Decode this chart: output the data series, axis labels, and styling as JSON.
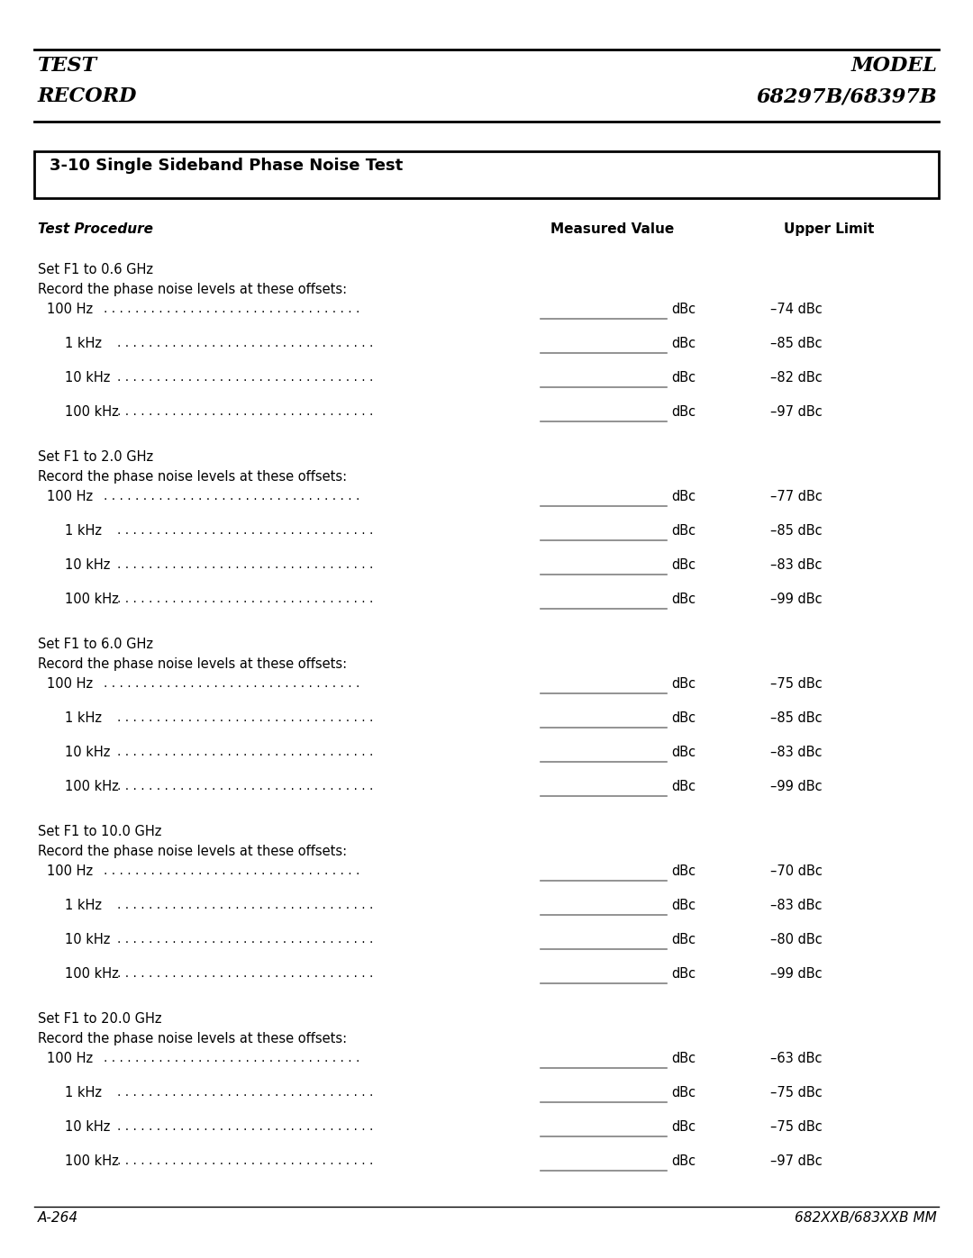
{
  "header_left": [
    "TEST",
    "RECORD"
  ],
  "header_right": [
    "MODEL",
    "68297B/68397B"
  ],
  "section_title": "3-10 Single Sideband Phase Noise Test",
  "col_headers": [
    "Test Procedure",
    "Measured Value",
    "Upper Limit"
  ],
  "groups": [
    {
      "set_line": "Set F1 to 0.6 GHz",
      "record_line": "Record the phase noise levels at these offsets:",
      "rows": [
        {
          "label": "100 Hz",
          "indent": 0,
          "upper_limit": "–74 dBc"
        },
        {
          "label": "1 kHz",
          "indent": 1,
          "upper_limit": "–85 dBc"
        },
        {
          "label": "10 kHz",
          "indent": 1,
          "upper_limit": "–82 dBc"
        },
        {
          "label": "100 kHz",
          "indent": 1,
          "upper_limit": "–97 dBc"
        }
      ]
    },
    {
      "set_line": "Set F1 to 2.0 GHz",
      "record_line": "Record the phase noise levels at these offsets:",
      "rows": [
        {
          "label": "100 Hz",
          "indent": 0,
          "upper_limit": "–77 dBc"
        },
        {
          "label": "1 kHz",
          "indent": 1,
          "upper_limit": "–85 dBc"
        },
        {
          "label": "10 kHz",
          "indent": 1,
          "upper_limit": "–83 dBc"
        },
        {
          "label": "100 kHz",
          "indent": 1,
          "upper_limit": "–99 dBc"
        }
      ]
    },
    {
      "set_line": "Set F1 to 6.0 GHz",
      "record_line": "Record the phase noise levels at these offsets:",
      "rows": [
        {
          "label": "100 Hz",
          "indent": 0,
          "upper_limit": "–75 dBc"
        },
        {
          "label": "1 kHz",
          "indent": 1,
          "upper_limit": "–85 dBc"
        },
        {
          "label": "10 kHz",
          "indent": 1,
          "upper_limit": "–83 dBc"
        },
        {
          "label": "100 kHz",
          "indent": 1,
          "upper_limit": "–99 dBc"
        }
      ]
    },
    {
      "set_line": "Set F1 to 10.0 GHz",
      "record_line": "Record the phase noise levels at these offsets:",
      "rows": [
        {
          "label": "100 Hz",
          "indent": 0,
          "upper_limit": "–70 dBc"
        },
        {
          "label": "1 kHz",
          "indent": 1,
          "upper_limit": "–83 dBc"
        },
        {
          "label": "10 kHz",
          "indent": 1,
          "upper_limit": "–80 dBc"
        },
        {
          "label": "100 kHz",
          "indent": 1,
          "upper_limit": "–99 dBc"
        }
      ]
    },
    {
      "set_line": "Set F1 to 20.0 GHz",
      "record_line": "Record the phase noise levels at these offsets:",
      "rows": [
        {
          "label": "100 Hz",
          "indent": 0,
          "upper_limit": "–63 dBc"
        },
        {
          "label": "1 kHz",
          "indent": 1,
          "upper_limit": "–75 dBc"
        },
        {
          "label": "10 kHz",
          "indent": 1,
          "upper_limit": "–75 dBc"
        },
        {
          "label": "100 kHz",
          "indent": 1,
          "upper_limit": "–97 dBc"
        }
      ]
    }
  ],
  "footer_left": "A-264",
  "footer_right": "682XXB/683XXB MM",
  "bg_color": "#ffffff",
  "text_color": "#000000"
}
